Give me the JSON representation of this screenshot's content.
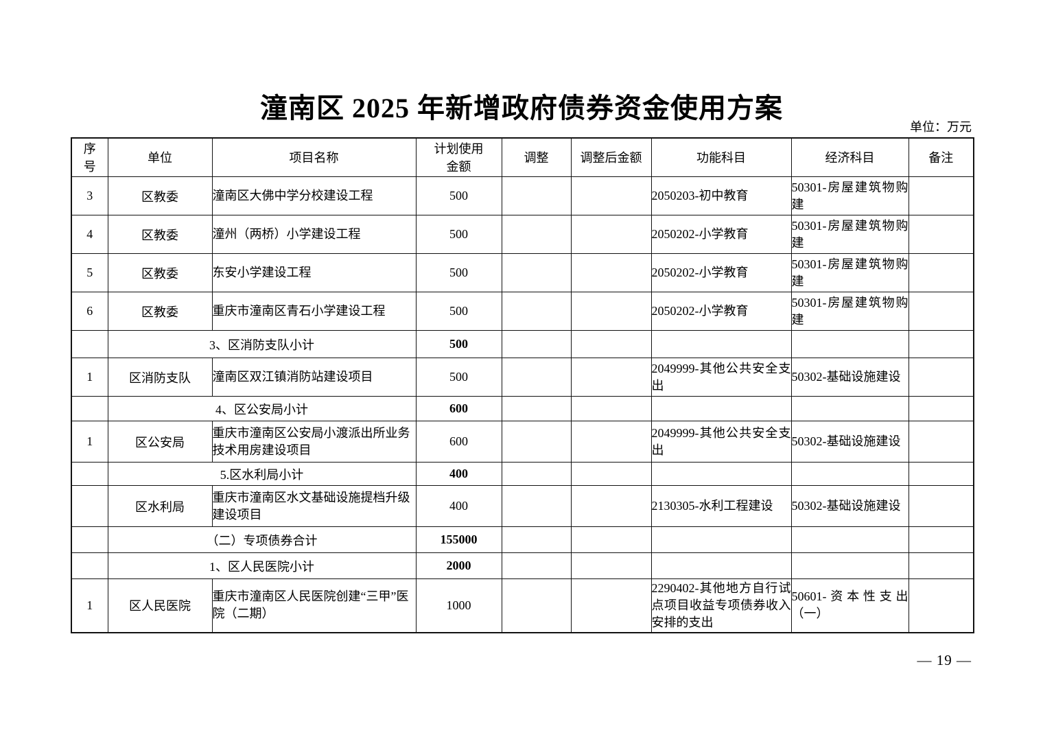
{
  "page": {
    "title": "潼南区 2025 年新增政府债券资金使用方案",
    "unit_note": "单位：万元",
    "page_number": "— 19 —"
  },
  "table": {
    "headers": [
      "序\n号",
      "单位",
      "项目名称",
      "计划使用\n金额",
      "调整",
      "调整后金额",
      "功能科目",
      "经济科目",
      "备注"
    ],
    "rows": [
      {
        "type": "data",
        "seq": "3",
        "unit": "区教委",
        "project": "潼南区大佛中学分校建设工程",
        "amount": "500",
        "adjustment": "",
        "adjusted_amount": "",
        "function_subject": "2050203-初中教育",
        "economic_subject": "50301-房屋建筑物购建",
        "remark": ""
      },
      {
        "type": "data",
        "seq": "4",
        "unit": "区教委",
        "project": "潼州（两桥）小学建设工程",
        "amount": "500",
        "adjustment": "",
        "adjusted_amount": "",
        "function_subject": "2050202-小学教育",
        "economic_subject": "50301-房屋建筑物购建",
        "remark": ""
      },
      {
        "type": "data",
        "seq": "5",
        "unit": "区教委",
        "project": "东安小学建设工程",
        "amount": "500",
        "adjustment": "",
        "adjusted_amount": "",
        "function_subject": "2050202-小学教育",
        "economic_subject": "50301-房屋建筑物购建",
        "remark": ""
      },
      {
        "type": "data",
        "seq": "6",
        "unit": "区教委",
        "project": "重庆市潼南区青石小学建设工程",
        "amount": "500",
        "adjustment": "",
        "adjusted_amount": "",
        "function_subject": "2050202-小学教育",
        "economic_subject": "50301-房屋建筑物购建",
        "remark": ""
      },
      {
        "type": "subtotal",
        "label": "3、区消防支队小计",
        "amount": "500"
      },
      {
        "type": "data",
        "seq": "1",
        "unit": "区消防支队",
        "project": "潼南区双江镇消防站建设项目",
        "amount": "500",
        "adjustment": "",
        "adjusted_amount": "",
        "function_subject": "2049999-其他公共安全支出",
        "economic_subject": "50302-基础设施建设",
        "remark": ""
      },
      {
        "type": "subtotal",
        "label": "4、区公安局小计",
        "amount": "600"
      },
      {
        "type": "data",
        "seq": "1",
        "unit": "区公安局",
        "project": "重庆市潼南区公安局小渡派出所业务技术用房建设项目",
        "amount": "600",
        "adjustment": "",
        "adjusted_amount": "",
        "function_subject": "2049999-其他公共安全支出",
        "economic_subject": "50302-基础设施建设",
        "remark": ""
      },
      {
        "type": "subtotal",
        "label": "5.区水利局小计",
        "amount": "400"
      },
      {
        "type": "data",
        "seq": "",
        "unit": "区水利局",
        "project": "重庆市潼南区水文基础设施提档升级建设项目",
        "amount": "400",
        "adjustment": "",
        "adjusted_amount": "",
        "function_subject": "2130305-水利工程建设",
        "economic_subject": "50302-基础设施建设",
        "remark": ""
      },
      {
        "type": "subtotal",
        "label": "（二）专项债券合计",
        "amount": "155000"
      },
      {
        "type": "subtotal",
        "label": "1、区人民医院小计",
        "amount": "2000"
      },
      {
        "type": "data",
        "seq": "1",
        "unit": "区人民医院",
        "project": "重庆市潼南区人民医院创建“三甲”医院（二期）",
        "amount": "1000",
        "adjustment": "",
        "adjusted_amount": "",
        "function_subject": "2290402-其他地方自行试点项目收益专项债券收入安排的支出",
        "economic_subject": "50601-资本性支出（一）",
        "remark": ""
      }
    ]
  }
}
